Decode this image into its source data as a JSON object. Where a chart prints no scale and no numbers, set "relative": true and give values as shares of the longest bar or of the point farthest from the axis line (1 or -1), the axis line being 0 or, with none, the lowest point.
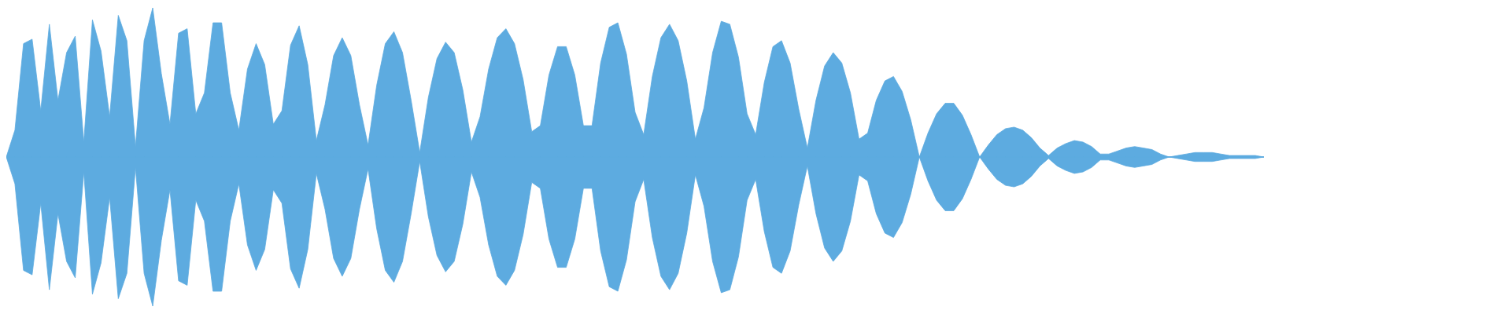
{
  "chart_data": {
    "type": "area",
    "relative": true,
    "categories": [
      null,
      null,
      null,
      null,
      null,
      null,
      null,
      null,
      null,
      null,
      null,
      null,
      null,
      null,
      null,
      null,
      null,
      null,
      null,
      null,
      null,
      null,
      null,
      null,
      null,
      null,
      null,
      null,
      null,
      null,
      null,
      null,
      null,
      null,
      null,
      null,
      null,
      null,
      null,
      null,
      null,
      null,
      null,
      null,
      null,
      null,
      null,
      null,
      null,
      null,
      null,
      null,
      null,
      null,
      null,
      null,
      null,
      null,
      null,
      null,
      null,
      null,
      null,
      null,
      null,
      null,
      null,
      null,
      null,
      null,
      null,
      null,
      null,
      null,
      null,
      null,
      null,
      null,
      null,
      null,
      null,
      null,
      null,
      null,
      null,
      null,
      null,
      null,
      null,
      null,
      null,
      null,
      null,
      null,
      null,
      null,
      null,
      null,
      null,
      null,
      null,
      null,
      null,
      null,
      null,
      null,
      null,
      null,
      null,
      null,
      null,
      null,
      null,
      null,
      null,
      null,
      null,
      null,
      null,
      null,
      null,
      null,
      null,
      null,
      null,
      null,
      null,
      null,
      null,
      null,
      null,
      null,
      null,
      null,
      null,
      null,
      null,
      null,
      null,
      null,
      null,
      null,
      null,
      null,
      null,
      null,
      null
    ],
    "series": [
      {
        "color": "#5dabe0",
        "values": [
          0,
          0.18,
          0.76,
          0.79,
          0.31,
          0.89,
          0.38,
          0.7,
          0.81,
          0.1,
          0.92,
          0.71,
          0.27,
          0.95,
          0.78,
          0.07,
          0.78,
          1,
          0.56,
          0.22,
          0.83,
          0.86,
          0.29,
          0.43,
          0.9,
          0.9,
          0.43,
          0.18,
          0.59,
          0.76,
          0.62,
          0.22,
          0.31,
          0.75,
          0.88,
          0.62,
          0.11,
          0.35,
          0.68,
          0.8,
          0.68,
          0.35,
          0.08,
          0.48,
          0.76,
          0.84,
          0.7,
          0.38,
          0.03,
          0.4,
          0.66,
          0.77,
          0.7,
          0.45,
          0.1,
          0.27,
          0.59,
          0.8,
          0.86,
          0.76,
          0.52,
          0.17,
          0.21,
          0.55,
          0.74,
          0.74,
          0.55,
          0.21,
          0.21,
          0.63,
          0.87,
          0.9,
          0.69,
          0.3,
          0.15,
          0.54,
          0.8,
          0.89,
          0.78,
          0.51,
          0.12,
          0.33,
          0.7,
          0.91,
          0.89,
          0.67,
          0.29,
          0.15,
          0.5,
          0.74,
          0.78,
          0.63,
          0.32,
          0.06,
          0.38,
          0.61,
          0.7,
          0.63,
          0.43,
          0.12,
          0.16,
          0.38,
          0.51,
          0.54,
          0.44,
          0.25,
          0,
          0.16,
          0.29,
          0.36,
          0.36,
          0.28,
          0.15,
          0,
          0.08,
          0.15,
          0.19,
          0.2,
          0.18,
          0.13,
          0.06,
          0.01,
          0.06,
          0.09,
          0.11,
          0.1,
          0.07,
          0.02,
          0.02,
          0.04,
          0.06,
          0.07,
          0.06,
          0.05,
          0.02,
          0,
          0.01,
          0.02,
          0.03,
          0.03,
          0.03,
          0.02,
          0.01,
          0.01,
          0.01,
          0.01,
          0
        ]
      },
      {
        "color": "#5dabe0",
        "values": [
          0,
          -0.18,
          -0.76,
          -0.79,
          -0.31,
          -0.89,
          -0.38,
          -0.7,
          -0.81,
          -0.1,
          -0.92,
          -0.71,
          -0.27,
          -0.95,
          -0.78,
          -0.07,
          -0.78,
          -1,
          -0.56,
          -0.22,
          -0.83,
          -0.86,
          -0.29,
          -0.43,
          -0.9,
          -0.9,
          -0.43,
          -0.18,
          -0.59,
          -0.76,
          -0.62,
          -0.22,
          -0.31,
          -0.75,
          -0.88,
          -0.62,
          -0.11,
          -0.35,
          -0.68,
          -0.8,
          -0.68,
          -0.35,
          -0.08,
          -0.48,
          -0.76,
          -0.84,
          -0.7,
          -0.38,
          -0.03,
          -0.4,
          -0.66,
          -0.77,
          -0.7,
          -0.45,
          -0.1,
          -0.27,
          -0.59,
          -0.8,
          -0.86,
          -0.76,
          -0.52,
          -0.17,
          -0.21,
          -0.55,
          -0.74,
          -0.74,
          -0.55,
          -0.21,
          -0.21,
          -0.63,
          -0.87,
          -0.9,
          -0.69,
          -0.3,
          -0.15,
          -0.54,
          -0.8,
          -0.89,
          -0.78,
          -0.51,
          -0.12,
          -0.33,
          -0.7,
          -0.91,
          -0.89,
          -0.67,
          -0.29,
          -0.15,
          -0.5,
          -0.74,
          -0.78,
          -0.63,
          -0.32,
          -0.06,
          -0.38,
          -0.61,
          -0.7,
          -0.63,
          -0.43,
          -0.12,
          -0.16,
          -0.38,
          -0.51,
          -0.54,
          -0.44,
          -0.25,
          0,
          -0.16,
          -0.29,
          -0.36,
          -0.36,
          -0.28,
          -0.15,
          0,
          -0.08,
          -0.15,
          -0.19,
          -0.2,
          -0.18,
          -0.13,
          -0.06,
          -0.01,
          -0.06,
          -0.09,
          -0.11,
          -0.1,
          -0.07,
          -0.02,
          -0.02,
          -0.04,
          -0.06,
          -0.07,
          -0.06,
          -0.05,
          -0.02,
          0,
          -0.01,
          -0.02,
          -0.03,
          -0.03,
          -0.03,
          -0.02,
          -0.01,
          -0.01,
          -0.01,
          -0.01,
          0
        ]
      }
    ]
  }
}
